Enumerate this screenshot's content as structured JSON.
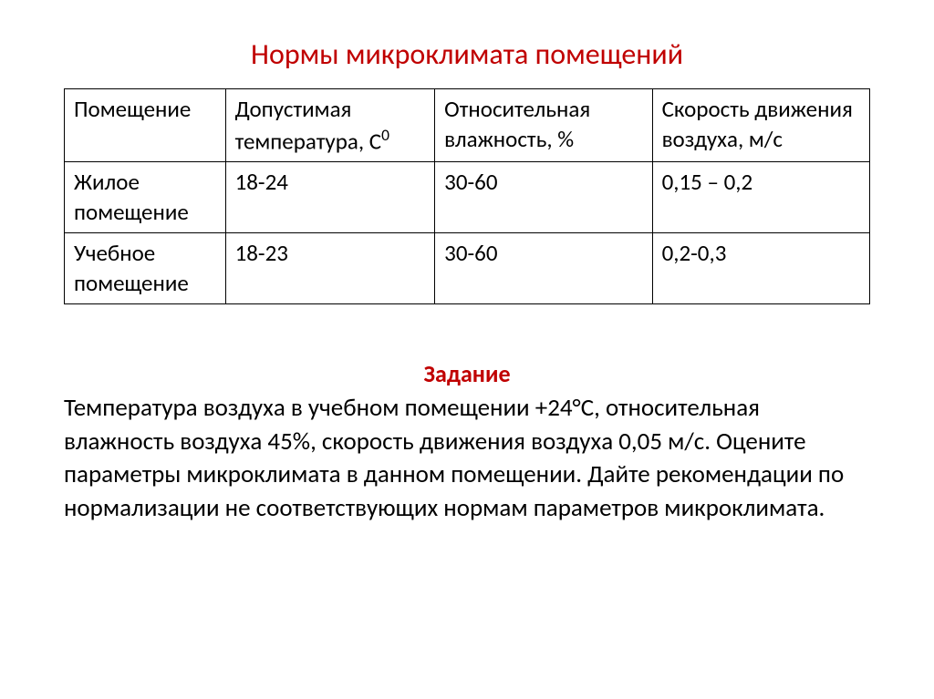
{
  "colors": {
    "title_color": "#c00000",
    "text_color": "#000000",
    "border_color": "#000000",
    "background_color": "#ffffff",
    "task_heading_color": "#c00000"
  },
  "title": "Нормы микроклимата помещений",
  "table": {
    "columns": [
      "Помещение",
      "Допустимая температура, С⁰",
      "Относительная влажность, %",
      "Скорость движения воздуха, м/с"
    ],
    "header_html": {
      "col1": "Помещение",
      "col2": "Допустимая температура, С",
      "col2_sup": "0",
      "col3": "Относительная влажность, %",
      "col4": "Скорость движения воздуха, м/с"
    },
    "rows": [
      [
        "Жилое помещение",
        "18-24",
        "30-60",
        "0,15 – 0,2"
      ],
      [
        "Учебное помещение",
        "18-23",
        "30-60",
        "0,2-0,3"
      ]
    ],
    "font_size": 25,
    "border_width": 1.5
  },
  "task": {
    "heading": "Задание",
    "text": "Температура воздуха в учебном помещении +24°С, относительная влажность воздуха 45%, скорость движения воздуха 0,05 м/с. Оцените параметры микроклимата в данном помещении. Дайте рекомендации по нормализации не соответствующих нормам параметров микроклимата.",
    "font_size": 27
  }
}
